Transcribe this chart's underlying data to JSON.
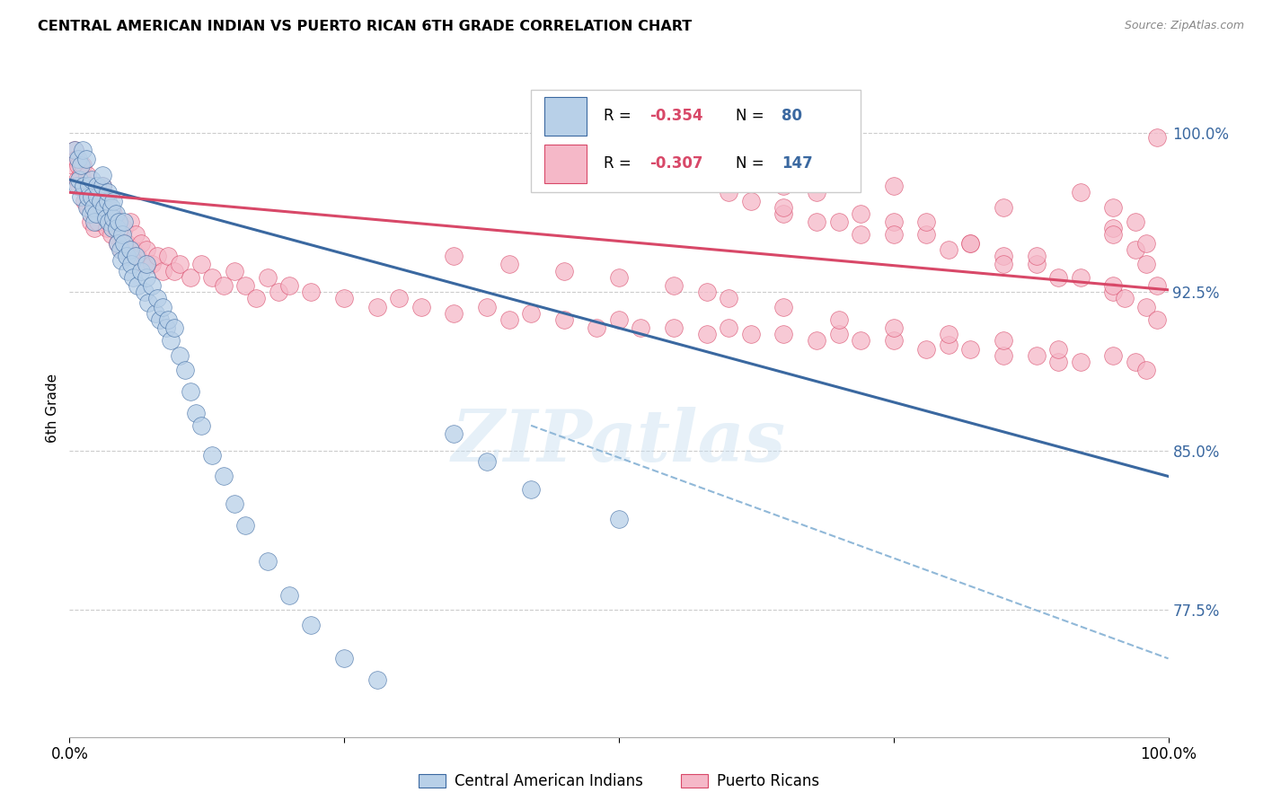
{
  "title": "CENTRAL AMERICAN INDIAN VS PUERTO RICAN 6TH GRADE CORRELATION CHART",
  "source": "Source: ZipAtlas.com",
  "ylabel": "6th Grade",
  "xlim": [
    0.0,
    1.0
  ],
  "ylim": [
    0.715,
    1.025
  ],
  "yticks": [
    0.775,
    0.85,
    0.925,
    1.0
  ],
  "ytick_labels": [
    "77.5%",
    "85.0%",
    "92.5%",
    "100.0%"
  ],
  "xtick_positions": [
    0.0,
    0.25,
    0.5,
    0.75,
    1.0
  ],
  "xtick_labels": [
    "0.0%",
    "",
    "",
    "",
    "100.0%"
  ],
  "legend_labels": [
    "Central American Indians",
    "Puerto Ricans"
  ],
  "color_blue": "#b8d0e8",
  "color_pink": "#f5b8c8",
  "color_blue_line": "#3a68a0",
  "color_pink_line": "#d84868",
  "color_dashed": "#90b8d8",
  "watermark": "ZIPatlas",
  "blue_trend_x": [
    0.0,
    1.0
  ],
  "blue_trend_y": [
    0.978,
    0.838
  ],
  "pink_trend_x": [
    0.0,
    1.0
  ],
  "pink_trend_y": [
    0.972,
    0.926
  ],
  "dashed_trend_x": [
    0.42,
    1.0
  ],
  "dashed_trend_y": [
    0.862,
    0.752
  ],
  "blue_scatter_x": [
    0.005,
    0.007,
    0.008,
    0.009,
    0.01,
    0.01,
    0.012,
    0.013,
    0.015,
    0.016,
    0.017,
    0.018,
    0.019,
    0.02,
    0.02,
    0.022,
    0.023,
    0.024,
    0.025,
    0.025,
    0.028,
    0.03,
    0.03,
    0.032,
    0.033,
    0.035,
    0.035,
    0.036,
    0.038,
    0.039,
    0.04,
    0.04,
    0.042,
    0.043,
    0.044,
    0.045,
    0.046,
    0.047,
    0.048,
    0.05,
    0.05,
    0.052,
    0.053,
    0.055,
    0.056,
    0.058,
    0.06,
    0.062,
    0.065,
    0.068,
    0.07,
    0.07,
    0.072,
    0.075,
    0.078,
    0.08,
    0.082,
    0.085,
    0.088,
    0.09,
    0.092,
    0.095,
    0.1,
    0.105,
    0.11,
    0.115,
    0.12,
    0.13,
    0.14,
    0.15,
    0.16,
    0.18,
    0.2,
    0.22,
    0.25,
    0.28,
    0.35,
    0.38,
    0.42,
    0.5
  ],
  "blue_scatter_y": [
    0.992,
    0.975,
    0.988,
    0.978,
    0.97,
    0.985,
    0.992,
    0.975,
    0.988,
    0.965,
    0.97,
    0.975,
    0.962,
    0.97,
    0.978,
    0.965,
    0.958,
    0.962,
    0.97,
    0.975,
    0.968,
    0.975,
    0.98,
    0.965,
    0.96,
    0.968,
    0.972,
    0.958,
    0.965,
    0.955,
    0.96,
    0.968,
    0.962,
    0.955,
    0.948,
    0.958,
    0.945,
    0.94,
    0.952,
    0.958,
    0.948,
    0.942,
    0.935,
    0.945,
    0.938,
    0.932,
    0.942,
    0.928,
    0.935,
    0.925,
    0.932,
    0.938,
    0.92,
    0.928,
    0.915,
    0.922,
    0.912,
    0.918,
    0.908,
    0.912,
    0.902,
    0.908,
    0.895,
    0.888,
    0.878,
    0.868,
    0.862,
    0.848,
    0.838,
    0.825,
    0.815,
    0.798,
    0.782,
    0.768,
    0.752,
    0.742,
    0.858,
    0.845,
    0.832,
    0.818
  ],
  "pink_scatter_x": [
    0.003,
    0.005,
    0.006,
    0.007,
    0.008,
    0.009,
    0.01,
    0.012,
    0.013,
    0.014,
    0.015,
    0.016,
    0.017,
    0.018,
    0.019,
    0.02,
    0.022,
    0.023,
    0.025,
    0.026,
    0.028,
    0.03,
    0.032,
    0.034,
    0.035,
    0.036,
    0.038,
    0.04,
    0.042,
    0.044,
    0.045,
    0.047,
    0.05,
    0.052,
    0.055,
    0.058,
    0.06,
    0.062,
    0.065,
    0.068,
    0.07,
    0.075,
    0.08,
    0.085,
    0.09,
    0.095,
    0.1,
    0.11,
    0.12,
    0.13,
    0.14,
    0.15,
    0.16,
    0.17,
    0.18,
    0.19,
    0.2,
    0.22,
    0.25,
    0.28,
    0.3,
    0.32,
    0.35,
    0.38,
    0.4,
    0.42,
    0.45,
    0.48,
    0.5,
    0.52,
    0.55,
    0.58,
    0.6,
    0.62,
    0.65,
    0.68,
    0.7,
    0.72,
    0.75,
    0.78,
    0.8,
    0.82,
    0.85,
    0.88,
    0.9,
    0.92,
    0.95,
    0.97,
    0.98,
    0.99,
    0.92,
    0.95,
    0.97,
    0.98,
    0.62,
    0.65,
    0.68,
    0.72,
    0.75,
    0.78,
    0.82,
    0.85,
    0.35,
    0.4,
    0.45,
    0.5,
    0.55,
    0.58,
    0.6,
    0.65,
    0.7,
    0.75,
    0.8,
    0.85,
    0.9,
    0.95,
    0.97,
    0.98,
    0.55,
    0.6,
    0.65,
    0.7,
    0.75,
    0.8,
    0.85,
    0.9,
    0.95,
    0.65,
    0.72,
    0.82,
    0.88,
    0.95,
    0.98,
    0.65,
    0.75,
    0.85,
    0.95,
    0.99,
    0.62,
    0.68,
    0.78,
    0.88,
    0.92,
    0.96,
    0.99
  ],
  "pink_scatter_y": [
    0.985,
    0.992,
    0.988,
    0.978,
    0.985,
    0.975,
    0.98,
    0.985,
    0.975,
    0.968,
    0.975,
    0.98,
    0.965,
    0.972,
    0.958,
    0.968,
    0.962,
    0.955,
    0.965,
    0.958,
    0.968,
    0.975,
    0.962,
    0.955,
    0.965,
    0.958,
    0.952,
    0.962,
    0.955,
    0.948,
    0.958,
    0.945,
    0.955,
    0.948,
    0.958,
    0.945,
    0.952,
    0.942,
    0.948,
    0.938,
    0.945,
    0.938,
    0.942,
    0.935,
    0.942,
    0.935,
    0.938,
    0.932,
    0.938,
    0.932,
    0.928,
    0.935,
    0.928,
    0.922,
    0.932,
    0.925,
    0.928,
    0.925,
    0.922,
    0.918,
    0.922,
    0.918,
    0.915,
    0.918,
    0.912,
    0.915,
    0.912,
    0.908,
    0.912,
    0.908,
    0.908,
    0.905,
    0.908,
    0.905,
    0.905,
    0.902,
    0.905,
    0.902,
    0.902,
    0.898,
    0.9,
    0.898,
    0.895,
    0.895,
    0.892,
    0.892,
    0.955,
    0.945,
    0.938,
    0.928,
    0.972,
    0.965,
    0.958,
    0.948,
    0.968,
    0.962,
    0.958,
    0.952,
    0.958,
    0.952,
    0.948,
    0.942,
    0.942,
    0.938,
    0.935,
    0.932,
    0.928,
    0.925,
    0.922,
    0.918,
    0.912,
    0.908,
    0.905,
    0.902,
    0.898,
    0.895,
    0.892,
    0.888,
    0.978,
    0.972,
    0.965,
    0.958,
    0.952,
    0.945,
    0.938,
    0.932,
    0.925,
    0.975,
    0.962,
    0.948,
    0.938,
    0.928,
    0.918,
    0.985,
    0.975,
    0.965,
    0.952,
    0.998,
    0.985,
    0.972,
    0.958,
    0.942,
    0.932,
    0.922,
    0.912
  ]
}
